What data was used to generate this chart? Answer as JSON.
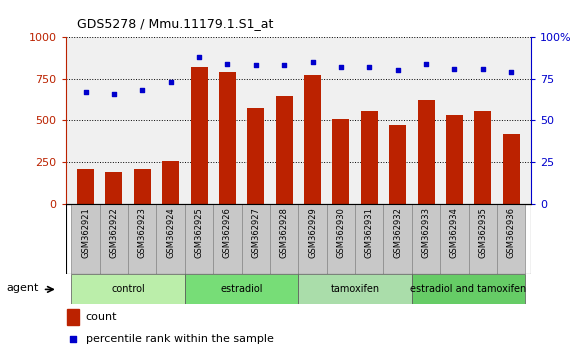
{
  "title": "GDS5278 / Mmu.11179.1.S1_at",
  "samples": [
    "GSM362921",
    "GSM362922",
    "GSM362923",
    "GSM362924",
    "GSM362925",
    "GSM362926",
    "GSM362927",
    "GSM362928",
    "GSM362929",
    "GSM362930",
    "GSM362931",
    "GSM362932",
    "GSM362933",
    "GSM362934",
    "GSM362935",
    "GSM362936"
  ],
  "counts": [
    205,
    190,
    210,
    255,
    820,
    790,
    575,
    645,
    775,
    510,
    555,
    475,
    625,
    530,
    555,
    420
  ],
  "percentiles": [
    67,
    66,
    68,
    73,
    88,
    84,
    83,
    83,
    85,
    82,
    82,
    80,
    84,
    81,
    81,
    79
  ],
  "groups": [
    {
      "label": "control",
      "start": 0,
      "end": 4,
      "color": "#bbeeaa"
    },
    {
      "label": "estradiol",
      "start": 4,
      "end": 8,
      "color": "#77dd77"
    },
    {
      "label": "tamoxifen",
      "start": 8,
      "end": 12,
      "color": "#aaddaa"
    },
    {
      "label": "estradiol and tamoxifen",
      "start": 12,
      "end": 16,
      "color": "#66cc66"
    }
  ],
  "bar_color": "#bb2200",
  "dot_color": "#0000cc",
  "left_ylim": [
    0,
    1000
  ],
  "right_ylim": [
    0,
    100
  ],
  "left_yticks": [
    0,
    250,
    500,
    750,
    1000
  ],
  "right_yticks": [
    0,
    25,
    50,
    75,
    100
  ],
  "left_ytick_labels": [
    "0",
    "250",
    "500",
    "750",
    "1000"
  ],
  "right_ytick_labels": [
    "0",
    "25",
    "50",
    "75",
    "100%"
  ],
  "legend_count_label": "count",
  "legend_pct_label": "percentile rank within the sample",
  "agent_label": "agent",
  "background_color": "#ffffff",
  "plot_bg_color": "#f0f0f0",
  "label_bg_color": "#c8c8c8"
}
